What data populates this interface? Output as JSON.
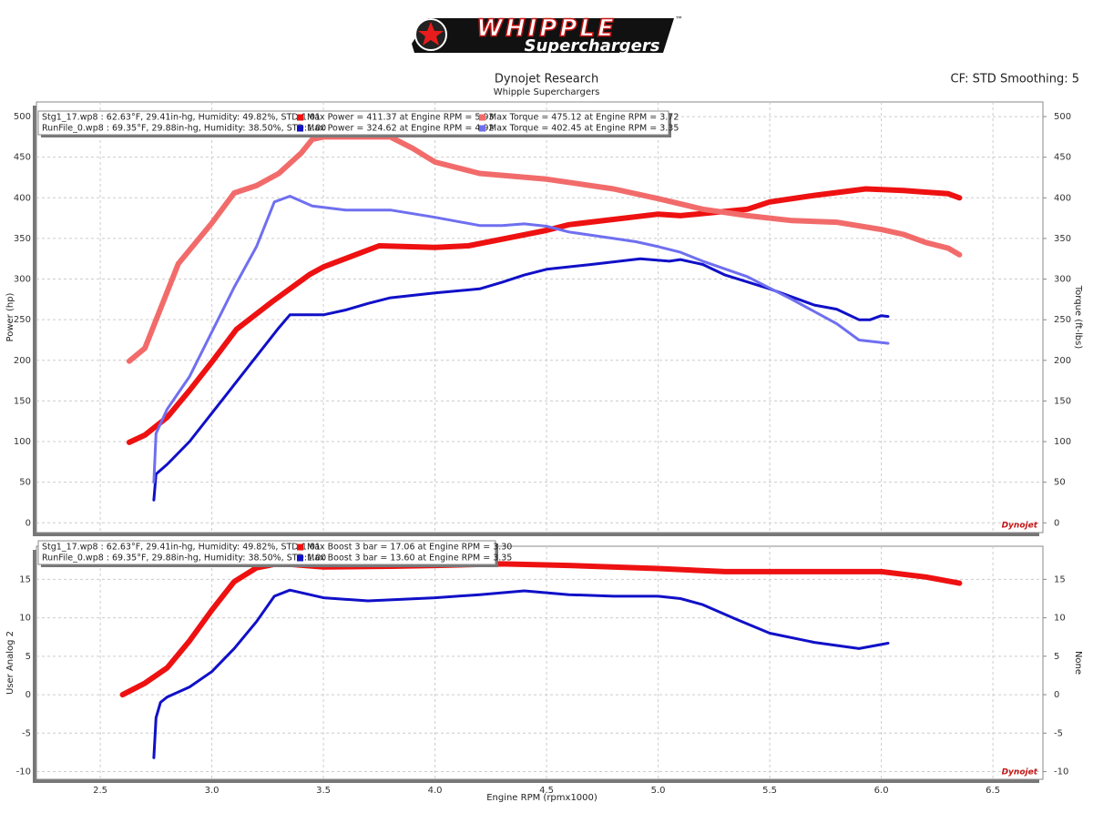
{
  "header": {
    "logo": "WHIPPLE",
    "trademark": "™",
    "logo_sub": "Superchargers",
    "title": "Dynojet Research",
    "subtitle": "Whipple Superchargers",
    "settings": "CF: STD Smoothing: 5"
  },
  "chart_data": [
    {
      "type": "line",
      "ylabel": "Power (hp)",
      "y2label": "Torque (ft-lbs)",
      "watermark": "Dynojet",
      "grid": true,
      "runs": [
        "Stg1_17.wp8    : 62.63°F, 29.41in-hg, Humidity: 49.82%, STD:1.01",
        "RunFile_0.wp8  : 69.35°F, 29.88in-hg, Humidity: 38.50%, STD:1.00"
      ],
      "xlim": [
        2.214,
        6.724
      ],
      "xticks": [
        2.5,
        3,
        3.5,
        4,
        4.5,
        5,
        5.5,
        6,
        6.5
      ],
      "ylim": [
        -12,
        518
      ],
      "yticks": [
        0,
        50,
        100,
        150,
        200,
        250,
        300,
        350,
        400,
        450,
        500
      ],
      "y2lim": [
        -12,
        518
      ],
      "y2ticks": [
        0,
        50,
        100,
        150,
        200,
        250,
        300,
        350,
        400,
        450,
        500
      ],
      "series": [
        {
          "name": "Max Power = 411.37 at Engine RPM = 5.93",
          "color": "#ee1111",
          "line_width": 6,
          "x": [
            2.63,
            2.7,
            2.8,
            2.9,
            3.0,
            3.11,
            3.27,
            3.44,
            3.5,
            3.75,
            4.0,
            4.15,
            4.5,
            4.6,
            5.0,
            5.1,
            5.4,
            5.5,
            5.7,
            5.93,
            6.1,
            6.3,
            6.35
          ],
          "values": [
            99,
            108,
            130,
            163,
            198,
            238,
            272,
            306,
            315,
            341,
            339,
            341,
            360,
            367,
            380,
            378,
            386,
            395,
            403,
            411,
            409,
            405,
            400
          ]
        },
        {
          "name": "Max Power = 324.62 at Engine RPM = 4.92",
          "color": "#1010c8",
          "line_width": 3,
          "x": [
            2.74,
            2.75,
            2.8,
            2.9,
            3.0,
            3.1,
            3.2,
            3.3,
            3.35,
            3.5,
            3.6,
            3.7,
            3.8,
            4.0,
            4.2,
            4.3,
            4.4,
            4.5,
            4.7,
            4.92,
            5.05,
            5.1,
            5.2,
            5.3,
            5.5,
            5.7,
            5.8,
            5.9,
            5.95,
            6.0,
            6.03
          ],
          "values": [
            28,
            60,
            72,
            100,
            135,
            170,
            205,
            240,
            256,
            256,
            262,
            270,
            277,
            283,
            288,
            296,
            305,
            312,
            318,
            325,
            322,
            324,
            318,
            305,
            288,
            268,
            263,
            250,
            250,
            255,
            254
          ]
        },
        {
          "name": "Max Torque = 475.12 at Engine RPM = 3.72",
          "color": "#f26b6b",
          "line_width": 6,
          "axis": "y2",
          "x": [
            2.63,
            2.7,
            2.85,
            3.0,
            3.1,
            3.2,
            3.3,
            3.4,
            3.45,
            3.5,
            3.72,
            3.8,
            3.9,
            4.0,
            4.2,
            4.5,
            4.8,
            5.0,
            5.2,
            5.4,
            5.6,
            5.8,
            6.0,
            6.1,
            6.2,
            6.3,
            6.35
          ],
          "values": [
            199,
            215,
            319,
            369,
            406,
            415,
            430,
            455,
            472,
            475,
            475,
            475,
            461,
            444,
            430,
            423,
            411,
            399,
            386,
            378,
            372,
            370,
            361,
            355,
            345,
            338,
            330
          ]
        },
        {
          "name": "Max Torque = 402.45 at Engine RPM = 3.35",
          "color": "#6f6ff0",
          "line_width": 3,
          "axis": "y2",
          "x": [
            2.74,
            2.75,
            2.8,
            2.9,
            3.0,
            3.1,
            3.2,
            3.28,
            3.35,
            3.45,
            3.6,
            3.8,
            4.0,
            4.2,
            4.3,
            4.4,
            4.5,
            4.6,
            4.8,
            4.9,
            5.0,
            5.1,
            5.2,
            5.4,
            5.6,
            5.8,
            5.9,
            6.0,
            6.03
          ],
          "values": [
            50,
            110,
            140,
            180,
            235,
            290,
            340,
            395,
            402,
            390,
            385,
            385,
            376,
            366,
            366,
            368,
            365,
            358,
            350,
            346,
            340,
            333,
            322,
            303,
            275,
            245,
            225,
            222,
            221
          ]
        }
      ]
    },
    {
      "type": "line",
      "ylabel": "User Analog 2",
      "y2label": "None",
      "xlabel": "Engine RPM (rpmx1000)",
      "watermark": "Dynojet",
      "grid": true,
      "runs": [
        "Stg1_17.wp8    : 62.63°F, 29.41in-hg, Humidity: 49.82%, STD:1.01",
        "RunFile_0.wp8  : 69.35°F, 29.88in-hg, Humidity: 38.50%, STD:1.00"
      ],
      "xlim": [
        2.214,
        6.724
      ],
      "xticks": [
        2.5,
        {
          "value": 3,
          "label": "3.0"
        },
        3.5,
        {
          "value": 4,
          "label": "4.0"
        },
        4.5,
        {
          "value": 5,
          "label": "5.0"
        },
        5.5,
        {
          "value": 6,
          "label": "6.0"
        },
        6.5
      ],
      "ylim": [
        -11,
        19.3
      ],
      "yticks": [
        -10,
        -5,
        0,
        5,
        10,
        15
      ],
      "y2lim": [
        -11,
        19.3
      ],
      "y2ticks": [
        -10,
        -5,
        0,
        5,
        10,
        15
      ],
      "series": [
        {
          "name": "Max Boost 3 bar = 17.06 at Engine RPM = 3.30",
          "color": "#ee1111",
          "line_width": 6,
          "x": [
            2.6,
            2.7,
            2.8,
            2.9,
            3.0,
            3.1,
            3.2,
            3.3,
            3.5,
            3.8,
            4.0,
            4.3,
            4.6,
            5.0,
            5.3,
            5.6,
            6.0,
            6.2,
            6.35
          ],
          "values": [
            0,
            1.5,
            3.5,
            7,
            11,
            14.7,
            16.5,
            17.06,
            16.6,
            16.7,
            16.8,
            17.0,
            16.8,
            16.4,
            16.0,
            16.0,
            16.0,
            15.3,
            14.5
          ]
        },
        {
          "name": "Max Boost 3 bar = 13.60 at Engine RPM = 3.35",
          "color": "#1010c8",
          "line_width": 3,
          "x": [
            2.74,
            2.75,
            2.77,
            2.8,
            2.9,
            3.0,
            3.1,
            3.2,
            3.28,
            3.35,
            3.5,
            3.7,
            4.0,
            4.2,
            4.4,
            4.6,
            4.8,
            5.0,
            5.1,
            5.2,
            5.35,
            5.5,
            5.7,
            5.9,
            6.03
          ],
          "values": [
            -8.2,
            -3,
            -1,
            -0.3,
            1,
            3,
            6,
            9.5,
            12.8,
            13.6,
            12.6,
            12.2,
            12.6,
            13.0,
            13.5,
            13.0,
            12.8,
            12.8,
            12.5,
            11.7,
            9.8,
            8.0,
            6.8,
            6.0,
            6.7
          ]
        }
      ]
    }
  ]
}
